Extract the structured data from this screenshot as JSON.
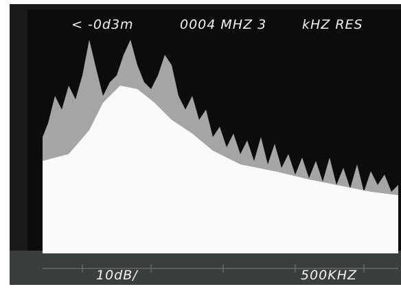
{
  "header": {
    "ref_level": "< -0d3m",
    "center_freq": "0004 MHZ 3",
    "resolution": "kHZ RES"
  },
  "footer": {
    "vertical_scale": "10dB/",
    "horizontal_scale": "500KHZ"
  }
}
